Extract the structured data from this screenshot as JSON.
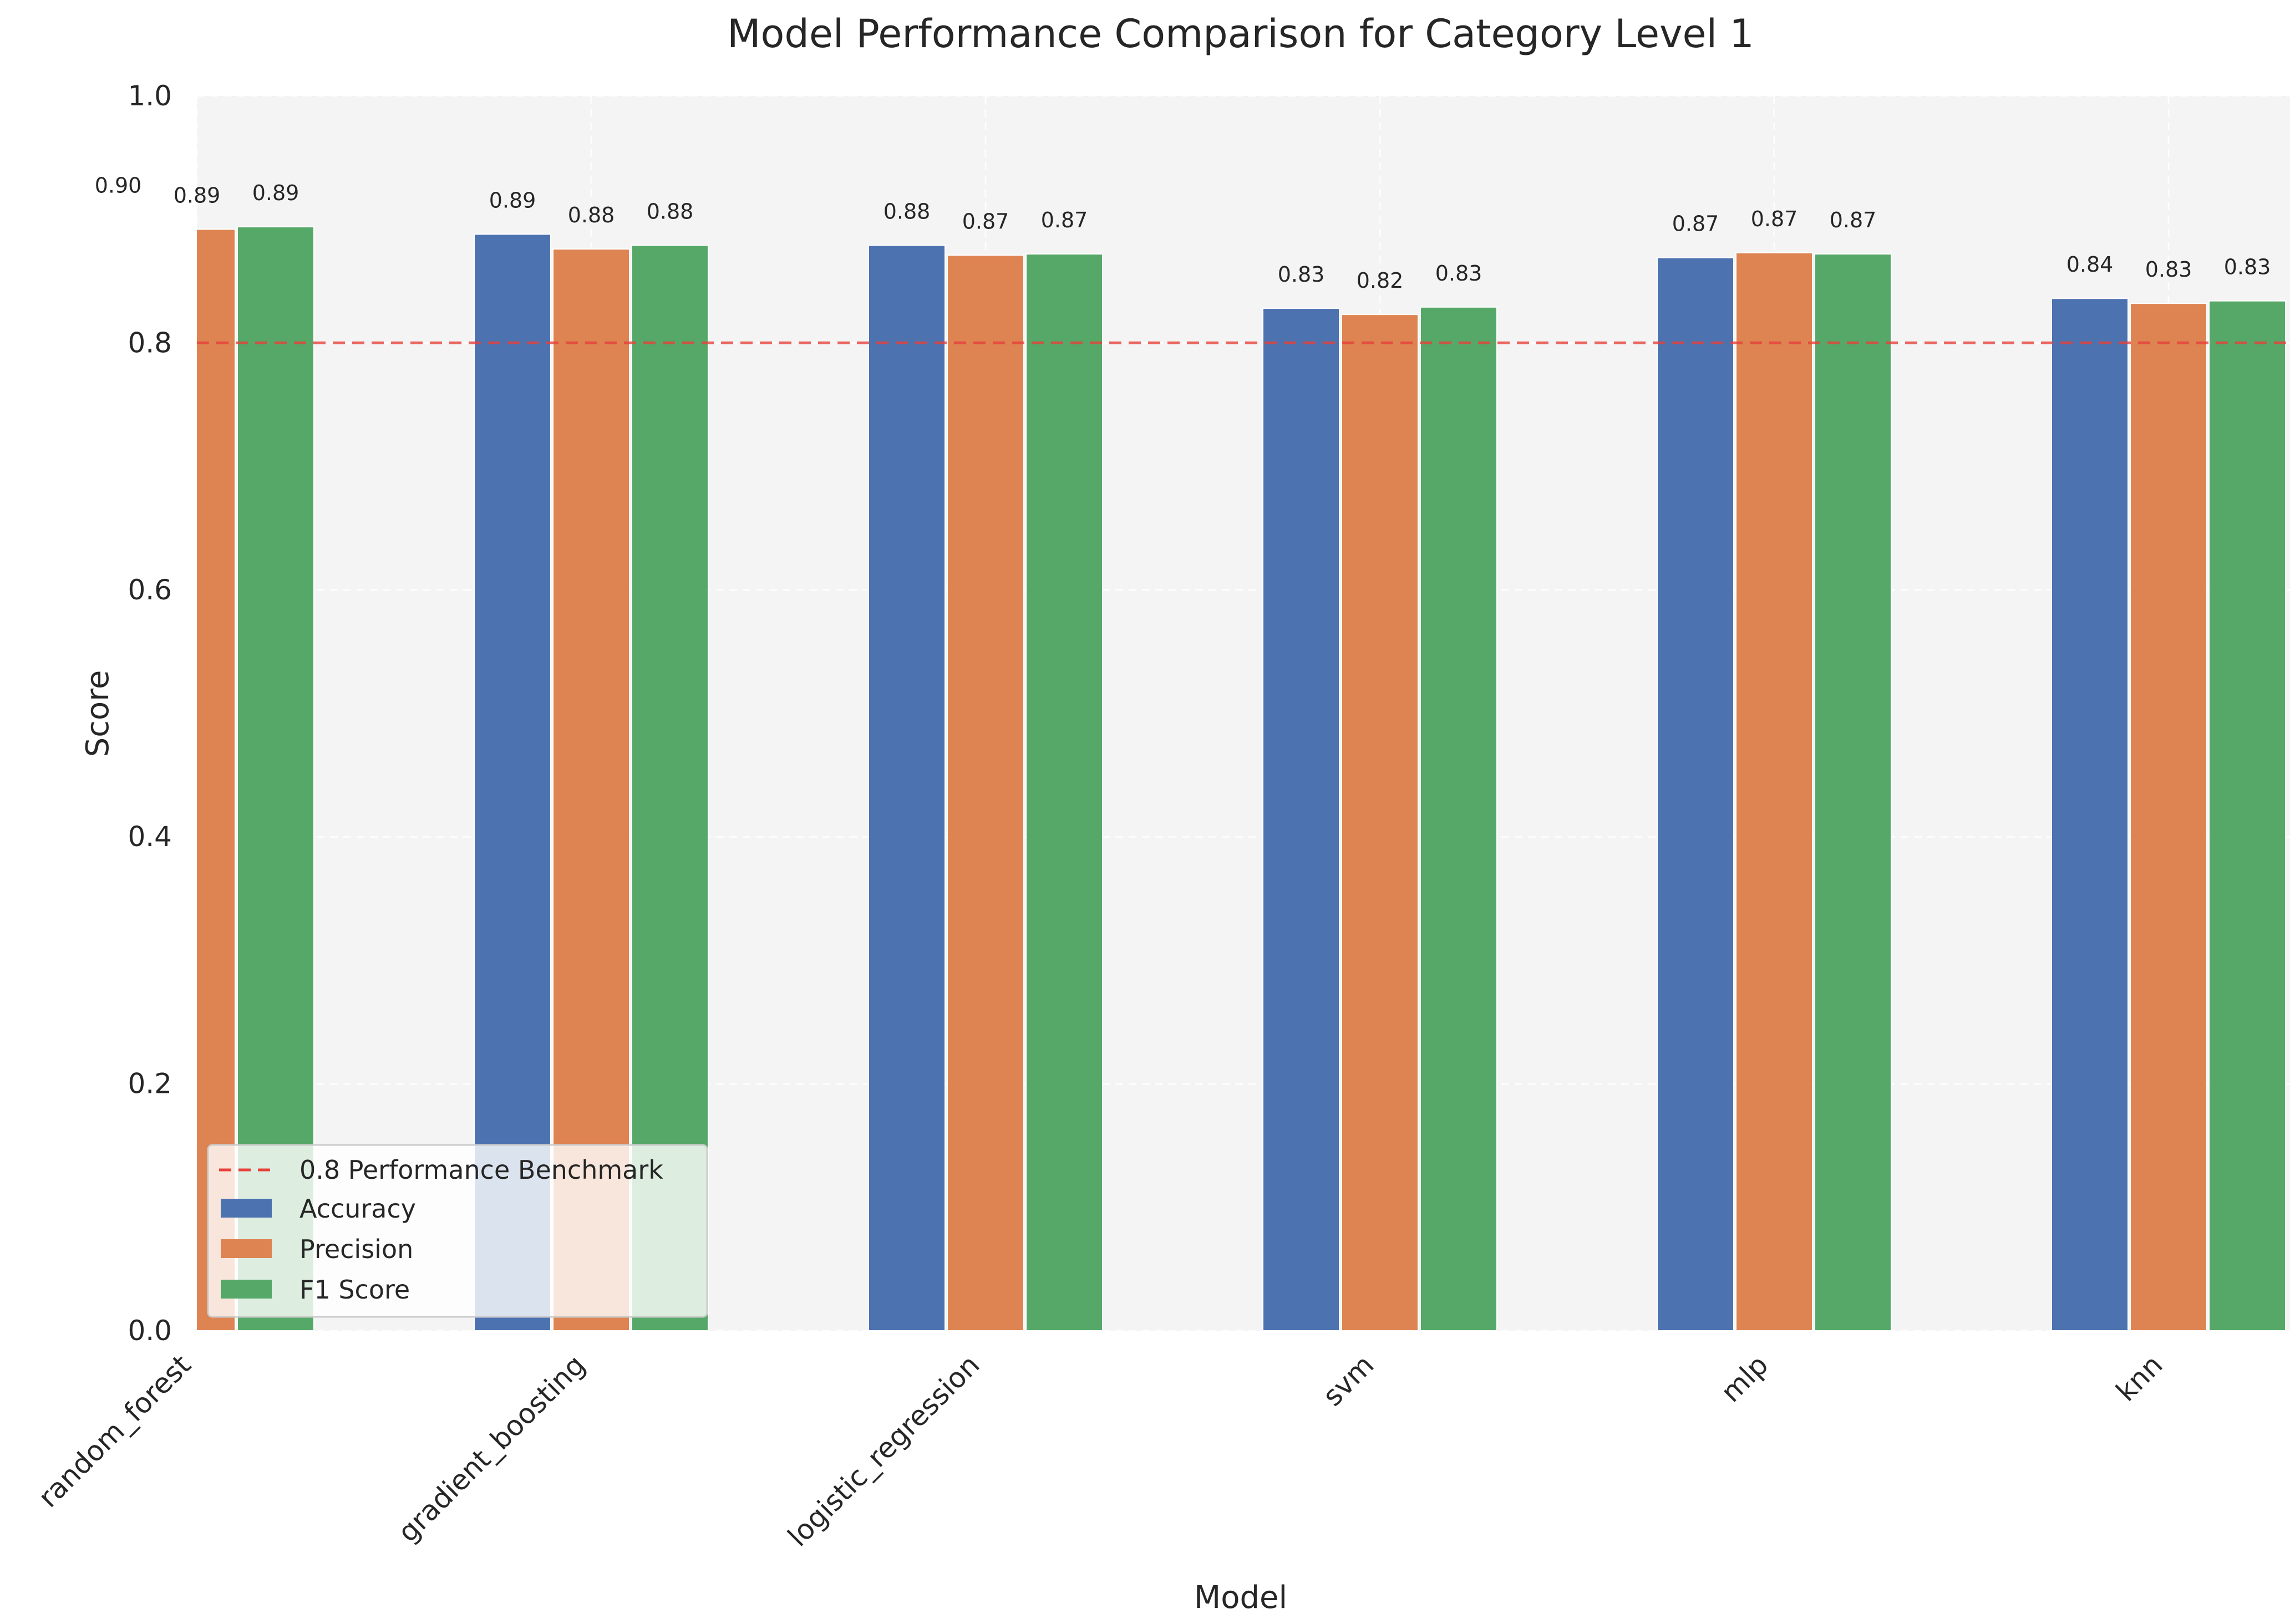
{
  "chart_data": {
    "type": "bar",
    "title": "Model Performance Comparison for Category Level 1",
    "xlabel": "Model",
    "ylabel": "Score",
    "ylim": [
      0.0,
      1.0
    ],
    "yticks": [
      "0.0",
      "0.2",
      "0.4",
      "0.6",
      "0.8",
      "1.0"
    ],
    "ytick_values": [
      0.0,
      0.2,
      0.4,
      0.6,
      0.8,
      1.0
    ],
    "categories": [
      "random_forest",
      "gradient_boosting",
      "logistic_regression",
      "svm",
      "mlp",
      "knn"
    ],
    "series": [
      {
        "name": "Accuracy",
        "color": "#4c72b0",
        "values": [
          0.9,
          0.888,
          0.879,
          0.828,
          0.869,
          0.836
        ],
        "labels": [
          "0.90",
          "0.89",
          "0.88",
          "0.83",
          "0.87",
          "0.84"
        ]
      },
      {
        "name": "Precision",
        "color": "#dd8452",
        "values": [
          0.892,
          0.876,
          0.871,
          0.823,
          0.873,
          0.832
        ],
        "labels": [
          "0.89",
          "0.88",
          "0.87",
          "0.82",
          "0.87",
          "0.83"
        ]
      },
      {
        "name": "F1 Score",
        "color": "#55a868",
        "values": [
          0.894,
          0.879,
          0.872,
          0.829,
          0.872,
          0.834
        ],
        "labels": [
          "0.89",
          "0.88",
          "0.87",
          "0.83",
          "0.87",
          "0.83"
        ]
      }
    ],
    "benchmark": {
      "value": 0.8,
      "label": "0.8 Performance Benchmark",
      "color": "#e8413a",
      "style": "dashed"
    },
    "grid": true,
    "legend_position": "lower-left",
    "background_color": "#f4f4f4"
  }
}
